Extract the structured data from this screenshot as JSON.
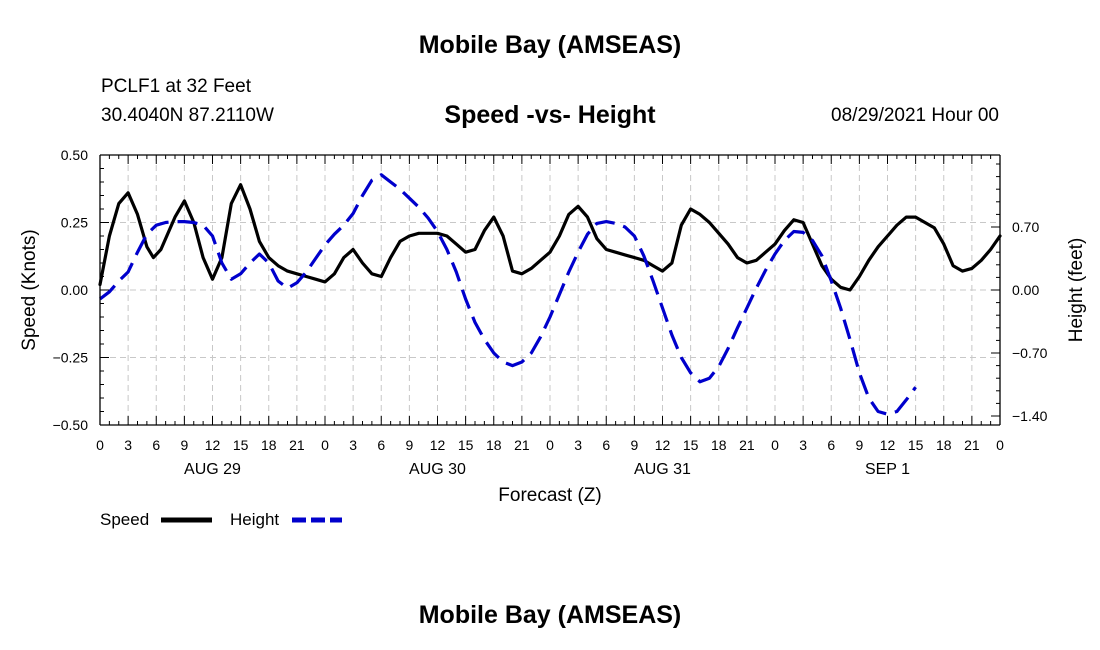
{
  "header": {
    "title": "Mobile Bay (AMSEAS)",
    "station": "PCLF1 at 32 Feet",
    "coordinates": "30.4040N  87.2110W",
    "datetime": "08/29/2021 Hour 00"
  },
  "footer": {
    "title": "Mobile Bay (AMSEAS)"
  },
  "chart_data": {
    "type": "line",
    "title": "Speed -vs- Height",
    "xlabel": "Forecast (Z)",
    "ylabel_left": "Speed (Knots)",
    "ylabel_right": "Height (feet)",
    "xlim": [
      0,
      96
    ],
    "ylim_left": [
      -0.5,
      0.5
    ],
    "ylim_right": [
      -1.5,
      1.5
    ],
    "left_ticks": [
      -0.5,
      -0.25,
      0.0,
      0.25,
      0.5
    ],
    "left_tick_labels": [
      "−0.50",
      "−0.25",
      "0.00",
      "0.25",
      "0.50"
    ],
    "right_ticks": [
      -1.4,
      -0.7,
      0.0,
      0.7
    ],
    "right_tick_labels": [
      "−1.40",
      "−0.70",
      "0.00",
      "0.70"
    ],
    "x_ticks": [
      0,
      3,
      6,
      9,
      12,
      15,
      18,
      21,
      24,
      27,
      30,
      33,
      36,
      39,
      42,
      45,
      48,
      51,
      54,
      57,
      60,
      63,
      66,
      69,
      72,
      75,
      78,
      81,
      84,
      87,
      90,
      93,
      96
    ],
    "x_tick_labels": [
      "0",
      "3",
      "6",
      "9",
      "12",
      "15",
      "18",
      "21",
      "0",
      "3",
      "6",
      "9",
      "12",
      "15",
      "18",
      "21",
      "0",
      "3",
      "6",
      "9",
      "12",
      "15",
      "18",
      "21",
      "0",
      "3",
      "6",
      "9",
      "12",
      "15",
      "18",
      "21",
      "0"
    ],
    "day_labels": [
      {
        "label": "AUG 29",
        "x": 12
      },
      {
        "label": "AUG 30",
        "x": 36
      },
      {
        "label": "AUG 31",
        "x": 60
      },
      {
        "label": "SEP 1",
        "x": 84
      }
    ],
    "grid": true,
    "legend_position": "bottom-left",
    "series": [
      {
        "name": "Speed",
        "axis": "left",
        "color": "#000000",
        "style": "solid",
        "points": [
          [
            0,
            0.02
          ],
          [
            1,
            0.2
          ],
          [
            2,
            0.32
          ],
          [
            3,
            0.36
          ],
          [
            4,
            0.28
          ],
          [
            5,
            0.16
          ],
          [
            5.7,
            0.12
          ],
          [
            6.5,
            0.15
          ],
          [
            8,
            0.27
          ],
          [
            9,
            0.33
          ],
          [
            10,
            0.25
          ],
          [
            11,
            0.12
          ],
          [
            12,
            0.04
          ],
          [
            13,
            0.12
          ],
          [
            14,
            0.32
          ],
          [
            15,
            0.39
          ],
          [
            16,
            0.3
          ],
          [
            17,
            0.18
          ],
          [
            18,
            0.12
          ],
          [
            19,
            0.09
          ],
          [
            20,
            0.07
          ],
          [
            21,
            0.06
          ],
          [
            22,
            0.05
          ],
          [
            23,
            0.04
          ],
          [
            24,
            0.03
          ],
          [
            25,
            0.06
          ],
          [
            26,
            0.12
          ],
          [
            27,
            0.15
          ],
          [
            28,
            0.1
          ],
          [
            29,
            0.06
          ],
          [
            30,
            0.05
          ],
          [
            31,
            0.12
          ],
          [
            32,
            0.18
          ],
          [
            33,
            0.2
          ],
          [
            34,
            0.21
          ],
          [
            35,
            0.21
          ],
          [
            36,
            0.21
          ],
          [
            37,
            0.2
          ],
          [
            38,
            0.17
          ],
          [
            39,
            0.14
          ],
          [
            40,
            0.15
          ],
          [
            41,
            0.22
          ],
          [
            42,
            0.27
          ],
          [
            43,
            0.2
          ],
          [
            44,
            0.07
          ],
          [
            45,
            0.06
          ],
          [
            46,
            0.08
          ],
          [
            47,
            0.11
          ],
          [
            48,
            0.14
          ],
          [
            49,
            0.2
          ],
          [
            50,
            0.28
          ],
          [
            51,
            0.31
          ],
          [
            52,
            0.27
          ],
          [
            53,
            0.19
          ],
          [
            54,
            0.15
          ],
          [
            55,
            0.14
          ],
          [
            56,
            0.13
          ],
          [
            57,
            0.12
          ],
          [
            58,
            0.11
          ],
          [
            59,
            0.09
          ],
          [
            60,
            0.07
          ],
          [
            61,
            0.1
          ],
          [
            62,
            0.24
          ],
          [
            63,
            0.3
          ],
          [
            64,
            0.28
          ],
          [
            65,
            0.25
          ],
          [
            66,
            0.21
          ],
          [
            67,
            0.17
          ],
          [
            68,
            0.12
          ],
          [
            69,
            0.1
          ],
          [
            70,
            0.11
          ],
          [
            71,
            0.14
          ],
          [
            72,
            0.17
          ],
          [
            73,
            0.22
          ],
          [
            74,
            0.26
          ],
          [
            75,
            0.25
          ],
          [
            76,
            0.17
          ],
          [
            77,
            0.09
          ],
          [
            78,
            0.04
          ],
          [
            79,
            0.01
          ],
          [
            80,
            0.0
          ],
          [
            81,
            0.05
          ],
          [
            82,
            0.11
          ],
          [
            83,
            0.16
          ],
          [
            84,
            0.2
          ],
          [
            85,
            0.24
          ],
          [
            86,
            0.27
          ],
          [
            87,
            0.27
          ],
          [
            88,
            0.25
          ],
          [
            89,
            0.23
          ],
          [
            90,
            0.17
          ],
          [
            91,
            0.09
          ],
          [
            92,
            0.07
          ],
          [
            93,
            0.08
          ],
          [
            94,
            0.11
          ],
          [
            95,
            0.15
          ],
          [
            96,
            0.2
          ]
        ]
      },
      {
        "name": "Height",
        "axis": "right",
        "color": "#0000cc",
        "style": "dashed",
        "points": [
          [
            0,
            -0.1
          ],
          [
            1,
            -0.02
          ],
          [
            2,
            0.1
          ],
          [
            3,
            0.2
          ],
          [
            4,
            0.42
          ],
          [
            5,
            0.62
          ],
          [
            6,
            0.72
          ],
          [
            7,
            0.75
          ],
          [
            8,
            0.76
          ],
          [
            9,
            0.76
          ],
          [
            10,
            0.75
          ],
          [
            11,
            0.72
          ],
          [
            12,
            0.6
          ],
          [
            13,
            0.3
          ],
          [
            14,
            0.12
          ],
          [
            15,
            0.18
          ],
          [
            16,
            0.3
          ],
          [
            17,
            0.4
          ],
          [
            18,
            0.3
          ],
          [
            19,
            0.1
          ],
          [
            20,
            0.02
          ],
          [
            21,
            0.08
          ],
          [
            22,
            0.2
          ],
          [
            23,
            0.35
          ],
          [
            24,
            0.5
          ],
          [
            25,
            0.62
          ],
          [
            26,
            0.72
          ],
          [
            27,
            0.85
          ],
          [
            28,
            1.05
          ],
          [
            29,
            1.22
          ],
          [
            30,
            1.28
          ],
          [
            31,
            1.2
          ],
          [
            32,
            1.12
          ],
          [
            33,
            1.02
          ],
          [
            34,
            0.92
          ],
          [
            35,
            0.8
          ],
          [
            36,
            0.65
          ],
          [
            37,
            0.45
          ],
          [
            38,
            0.2
          ],
          [
            39,
            -0.1
          ],
          [
            40,
            -0.36
          ],
          [
            41,
            -0.55
          ],
          [
            42,
            -0.7
          ],
          [
            43,
            -0.8
          ],
          [
            44,
            -0.84
          ],
          [
            45,
            -0.8
          ],
          [
            46,
            -0.7
          ],
          [
            47,
            -0.52
          ],
          [
            48,
            -0.3
          ],
          [
            49,
            -0.05
          ],
          [
            50,
            0.2
          ],
          [
            51,
            0.42
          ],
          [
            52,
            0.62
          ],
          [
            53,
            0.74
          ],
          [
            54,
            0.76
          ],
          [
            55,
            0.74
          ],
          [
            56,
            0.7
          ],
          [
            57,
            0.6
          ],
          [
            58,
            0.38
          ],
          [
            59,
            0.1
          ],
          [
            60,
            -0.2
          ],
          [
            61,
            -0.5
          ],
          [
            62,
            -0.75
          ],
          [
            63,
            -0.92
          ],
          [
            64,
            -1.02
          ],
          [
            65,
            -0.98
          ],
          [
            66,
            -0.85
          ],
          [
            67,
            -0.65
          ],
          [
            68,
            -0.42
          ],
          [
            69,
            -0.2
          ],
          [
            70,
            0.02
          ],
          [
            71,
            0.22
          ],
          [
            72,
            0.4
          ],
          [
            73,
            0.55
          ],
          [
            74,
            0.65
          ],
          [
            75,
            0.64
          ],
          [
            76,
            0.55
          ],
          [
            77,
            0.38
          ],
          [
            78,
            0.1
          ],
          [
            79,
            -0.2
          ],
          [
            80,
            -0.55
          ],
          [
            81,
            -0.92
          ],
          [
            82,
            -1.2
          ],
          [
            83,
            -1.35
          ],
          [
            84,
            -1.38
          ],
          [
            85,
            -1.35
          ],
          [
            86,
            -1.22
          ],
          [
            87,
            -1.08
          ]
        ]
      }
    ]
  }
}
